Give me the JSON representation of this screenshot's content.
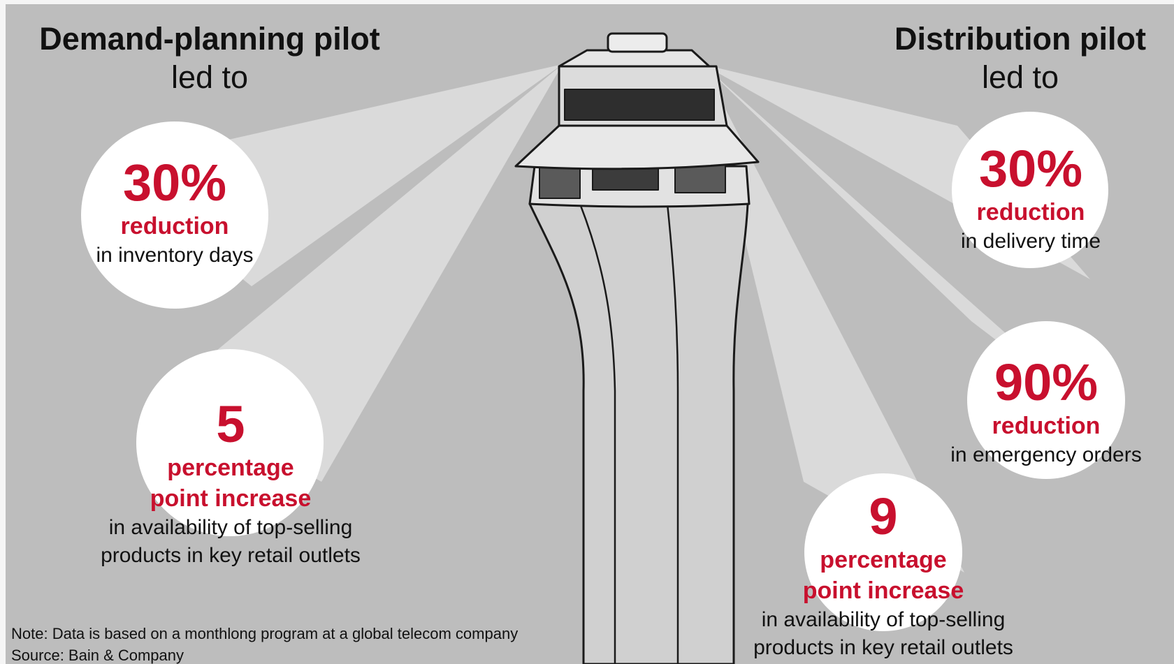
{
  "left_heading": {
    "title": "Demand-planning pilot",
    "subtitle": "led to"
  },
  "right_heading": {
    "title": "Distribution pilot",
    "subtitle": "led to"
  },
  "stats": {
    "inventory": {
      "value": "30%",
      "label": "reduction",
      "description": "in inventory days"
    },
    "availability_left": {
      "value": "5",
      "label_1": "percentage",
      "label_2": "point increase",
      "description_1": "in availability of top-selling",
      "description_2": "products in key retail outlets"
    },
    "delivery": {
      "value": "30%",
      "label": "reduction",
      "description": "in delivery time"
    },
    "emergency": {
      "value": "90%",
      "label": "reduction",
      "description": "in emergency orders"
    },
    "availability_right": {
      "value": "9",
      "label_1": "percentage",
      "label_2": "point increase",
      "description_1": "in availability of top-selling",
      "description_2": "products in key retail outlets"
    }
  },
  "note": "Note: Data is based on a monthlong program at a global telecom company",
  "source": "Source: Bain & Company",
  "colors": {
    "accent": "#c8102e",
    "background": "#bdbdbd",
    "beam": "#e2e2e2",
    "circle": "#ffffff",
    "text": "#111111"
  },
  "icons": {
    "tower": "air-traffic-control-tower-icon"
  }
}
